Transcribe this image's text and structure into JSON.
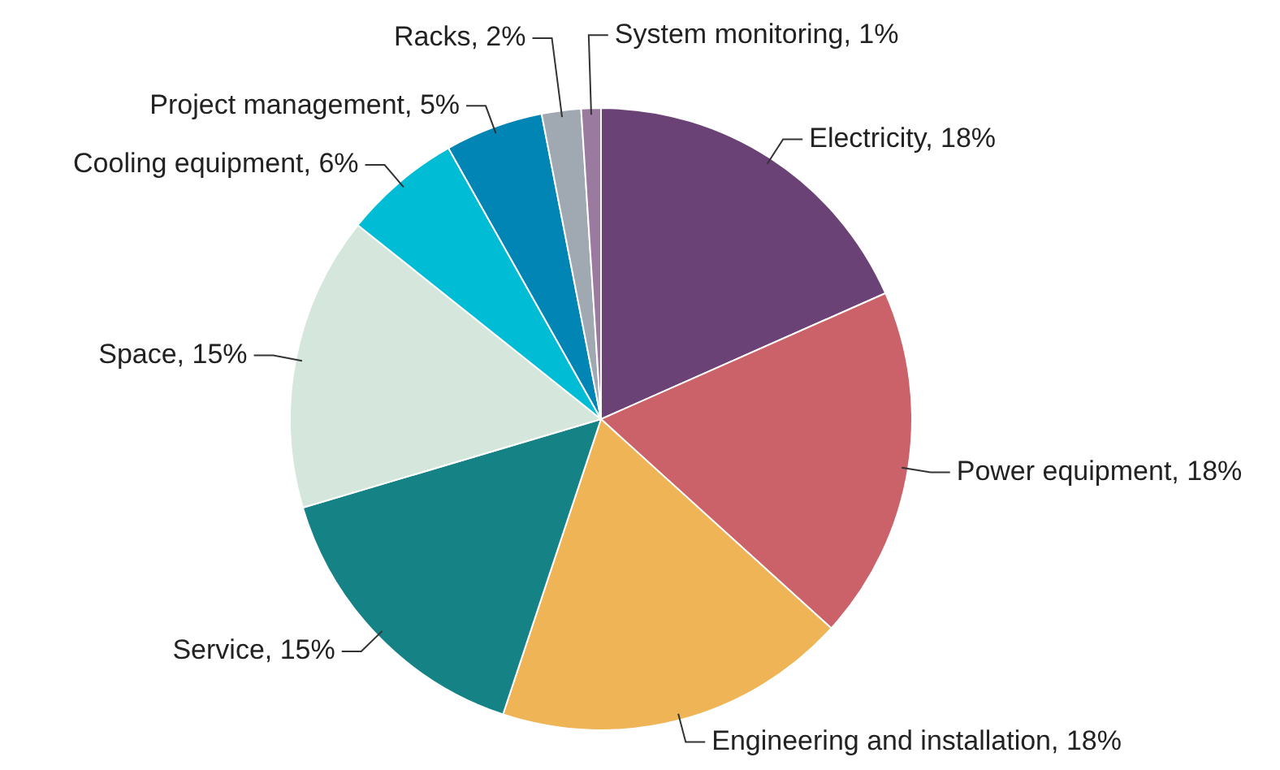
{
  "chart_data": {
    "type": "pie",
    "categories": [
      "Electricity",
      "Power equipment",
      "Engineering and installation",
      "Service",
      "Space",
      "Cooling equipment",
      "Project management",
      "Racks",
      "System monitoring"
    ],
    "values": [
      18,
      18,
      18,
      15,
      15,
      6,
      5,
      2,
      1
    ],
    "value_labels": [
      "18%",
      "18%",
      "18%",
      "15%",
      "15%",
      "6%",
      "5%",
      "2%",
      "1%"
    ],
    "colors": [
      "#6b4275",
      "#cc6269",
      "#eeb455",
      "#158285",
      "#d5e7dc",
      "#00bcd4",
      "#0085b5",
      "#a0a8b2",
      "#9b7aa0"
    ],
    "legend": false
  }
}
